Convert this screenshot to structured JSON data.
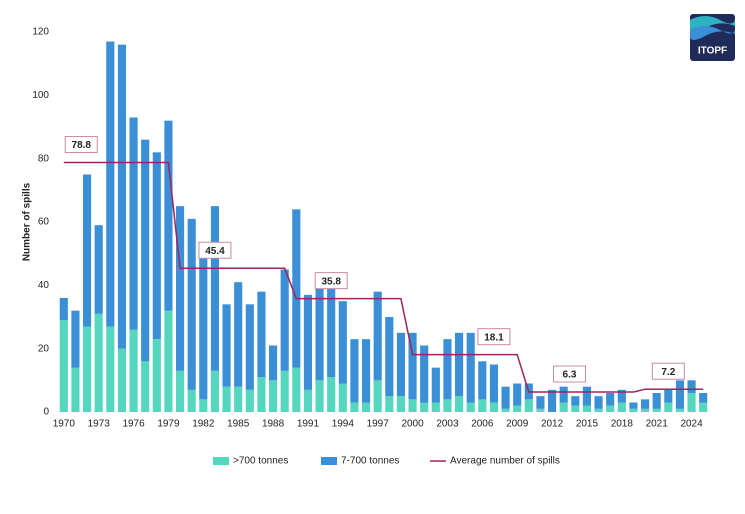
{
  "chart_data": {
    "type": "stacked-bar-line",
    "y_label": "Number of spills",
    "logo": "ITOPF",
    "x": [
      1970,
      1971,
      1972,
      1973,
      1974,
      1975,
      1976,
      1977,
      1978,
      1979,
      1980,
      1981,
      1982,
      1983,
      1984,
      1985,
      1986,
      1987,
      1988,
      1989,
      1990,
      1991,
      1992,
      1993,
      1994,
      1995,
      1996,
      1997,
      1998,
      1999,
      2000,
      2001,
      2002,
      2003,
      2004,
      2005,
      2006,
      2007,
      2008,
      2009,
      2010,
      2011,
      2012,
      2013,
      2014,
      2015,
      2016,
      2017,
      2018,
      2019,
      2020,
      2021,
      2022,
      2023,
      2024,
      2025
    ],
    "xlim": [
      1969.5,
      2025.5
    ],
    "xticks": [
      1970,
      1973,
      1976,
      1979,
      1982,
      1985,
      1988,
      1991,
      1994,
      1997,
      2000,
      2003,
      2006,
      2009,
      2012,
      2015,
      2018,
      2021,
      2024
    ],
    "ylim": [
      0,
      120
    ],
    "yticks": [
      0,
      20,
      40,
      60,
      80,
      100,
      120
    ],
    "grid": false,
    "series": [
      {
        "name": ">700 tonnes",
        "color": "#55d6be",
        "type": "bar",
        "values": [
          29,
          14,
          27,
          31,
          27,
          20,
          26,
          16,
          23,
          32,
          13,
          7,
          4,
          13,
          8,
          8,
          7,
          11,
          10,
          13,
          14,
          7,
          10,
          11,
          9,
          3,
          3,
          10,
          5,
          5,
          4,
          3,
          3,
          4,
          5,
          3,
          4,
          3,
          1,
          2,
          4,
          1,
          0,
          3,
          2,
          2,
          1,
          2,
          3,
          1,
          1,
          1,
          3,
          1,
          6,
          3
        ]
      },
      {
        "name": "7-700 tonnes",
        "color": "#3a8fd6",
        "type": "bar",
        "values": [
          7,
          18,
          48,
          28,
          90,
          96,
          67,
          70,
          59,
          60,
          52,
          54,
          46,
          52,
          26,
          33,
          27,
          27,
          11,
          32,
          50,
          30,
          31,
          31,
          26,
          20,
          20,
          28,
          25,
          20,
          21,
          18,
          11,
          19,
          20,
          22,
          12,
          12,
          7,
          7,
          5,
          4,
          7,
          5,
          3,
          6,
          4,
          4,
          4,
          2,
          3,
          5,
          4,
          9,
          4,
          3
        ]
      },
      {
        "name": "Average number of spills",
        "color": "#a0245a",
        "type": "line",
        "values": [
          78.8,
          78.8,
          78.8,
          78.8,
          78.8,
          78.8,
          78.8,
          78.8,
          78.8,
          78.8,
          45.4,
          45.4,
          45.4,
          45.4,
          45.4,
          45.4,
          45.4,
          45.4,
          45.4,
          45.4,
          35.8,
          35.8,
          35.8,
          35.8,
          35.8,
          35.8,
          35.8,
          35.8,
          35.8,
          35.8,
          18.1,
          18.1,
          18.1,
          18.1,
          18.1,
          18.1,
          18.1,
          18.1,
          18.1,
          18.1,
          6.3,
          6.3,
          6.3,
          6.3,
          6.3,
          6.3,
          6.3,
          6.3,
          6.3,
          6.3,
          7.2,
          7.2,
          7.2,
          7.2,
          7.2,
          7.2
        ]
      }
    ]
  }
}
